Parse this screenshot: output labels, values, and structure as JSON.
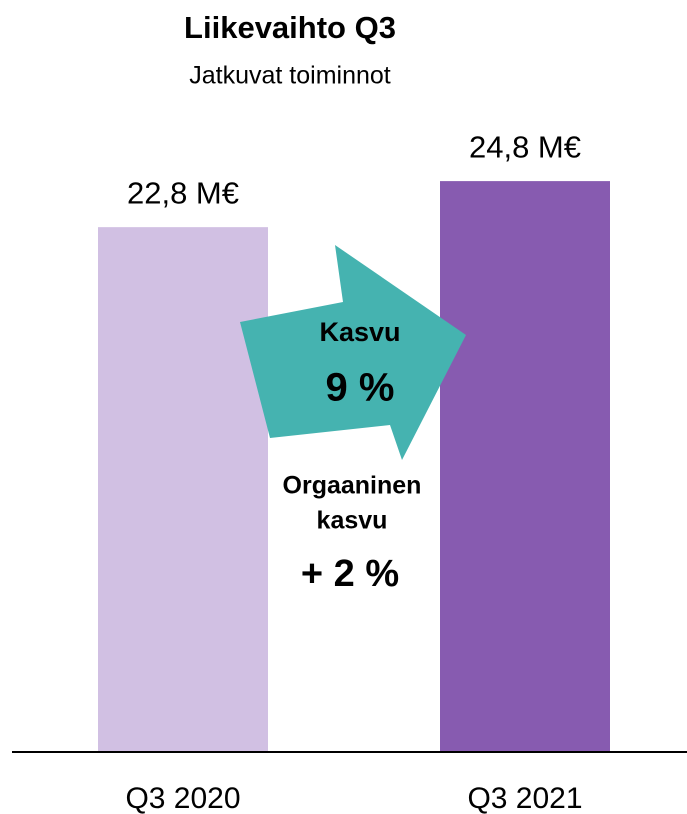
{
  "chart_data": {
    "type": "bar",
    "title": "Liikevaihto Q3",
    "subtitle": "Jatkuvat toiminnot",
    "categories": [
      "Q3 2020",
      "Q3 2021"
    ],
    "values": [
      22.8,
      24.8
    ],
    "value_labels": [
      "22,8 M€",
      "24,8 M€"
    ],
    "colors": [
      "#d1c0e3",
      "#875bb0"
    ],
    "annotations": {
      "growth_label": "Kasvu",
      "growth_value": "9 %",
      "organic_label": [
        "Orgaaninen",
        "kasvu"
      ],
      "organic_value": "+ 2 %",
      "color": "#45b3b0"
    }
  }
}
